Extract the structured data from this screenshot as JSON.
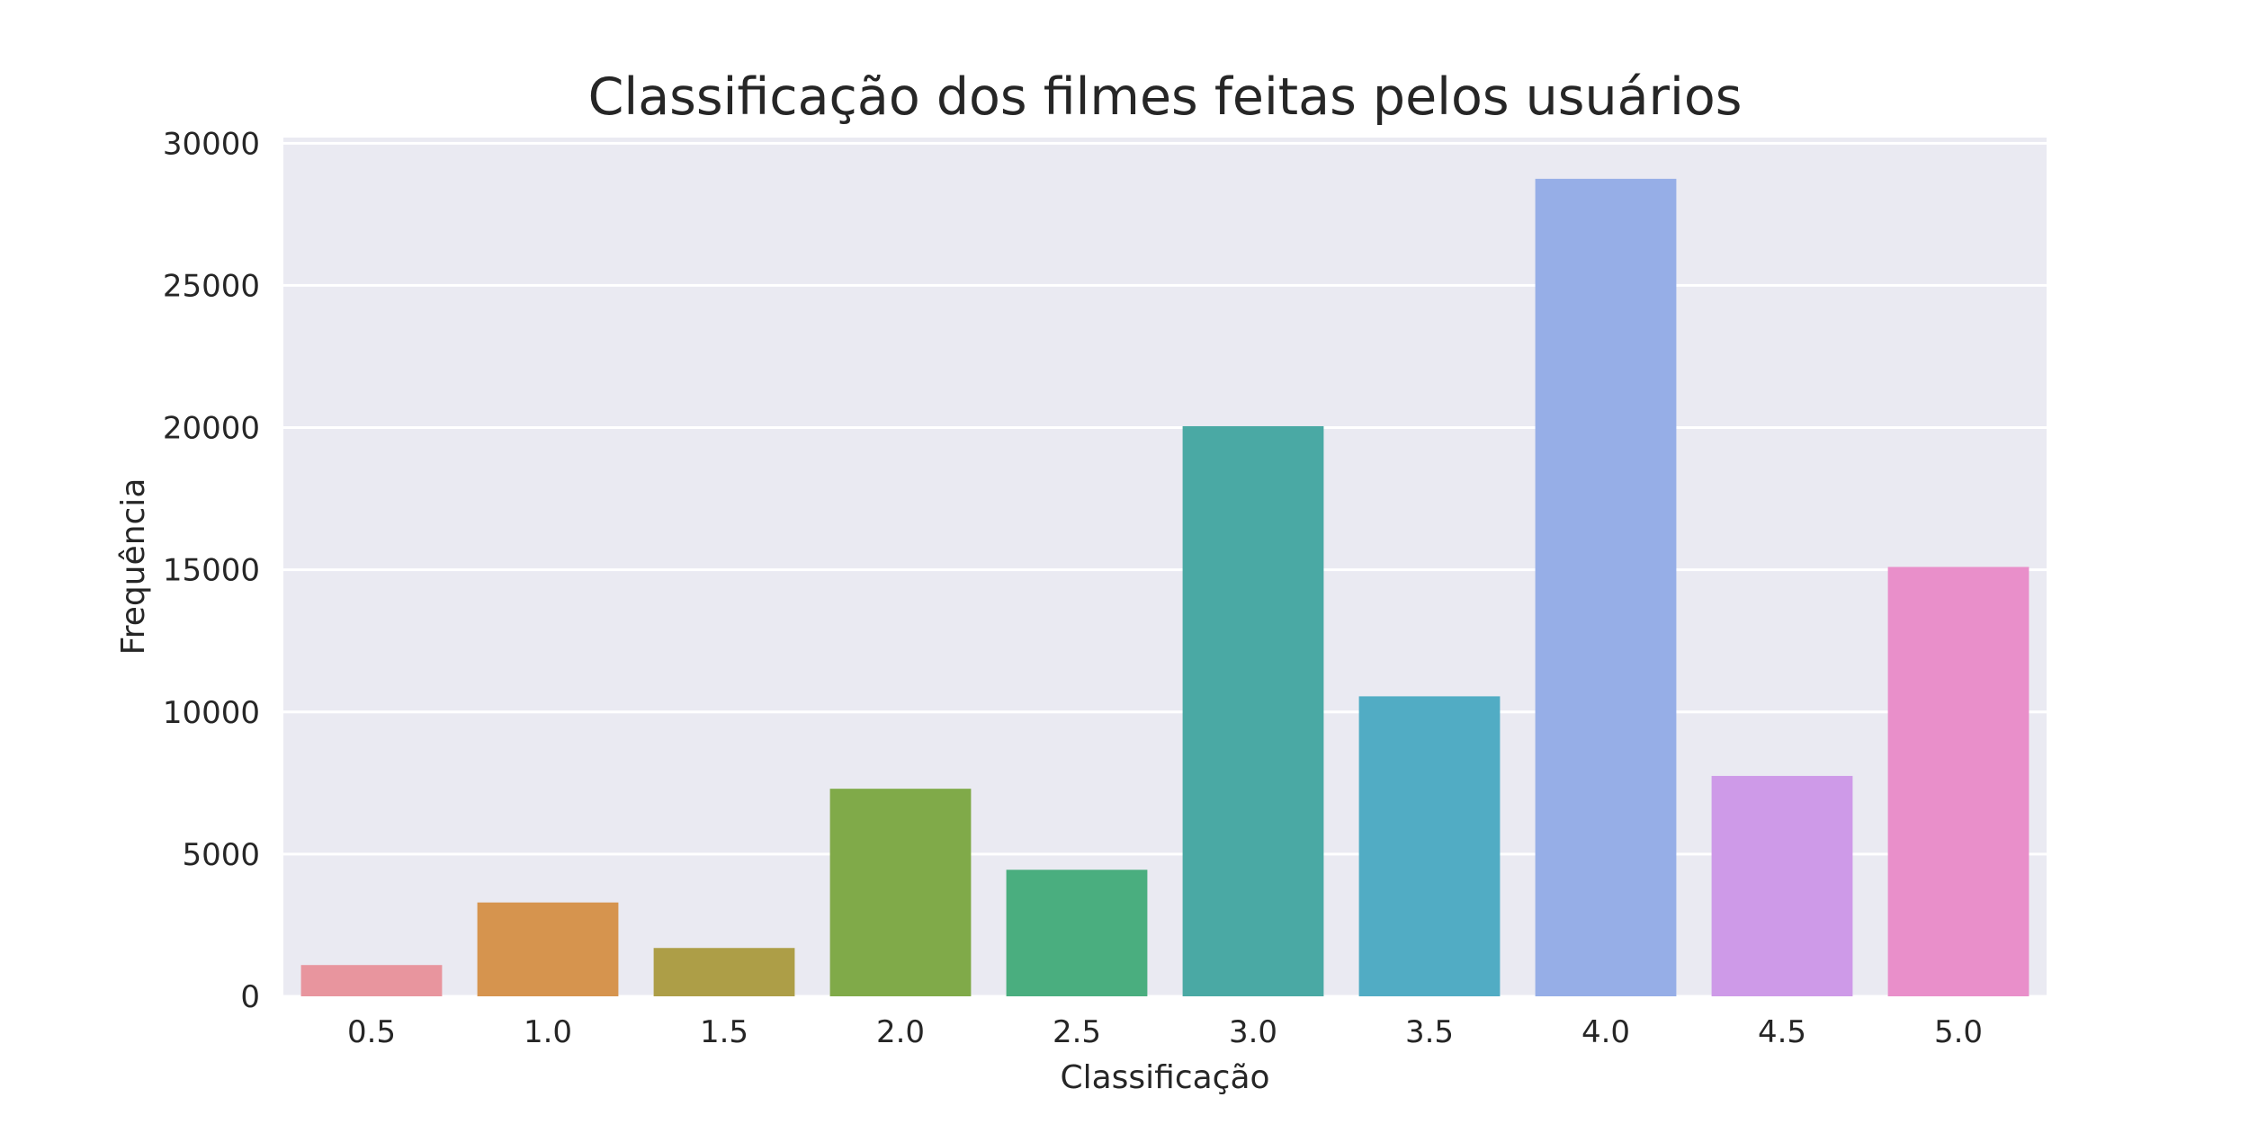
{
  "chart_data": {
    "type": "bar",
    "title": "Classificação dos filmes feitas pelos usuários",
    "xlabel": "Classificação",
    "ylabel": "Frequência",
    "categories": [
      "0.5",
      "1.0",
      "1.5",
      "2.0",
      "2.5",
      "3.0",
      "3.5",
      "4.0",
      "4.5",
      "5.0"
    ],
    "values": [
      1100,
      3300,
      1700,
      7300,
      4450,
      20050,
      10550,
      28750,
      7750,
      15100
    ],
    "colors": [
      "#e8959e",
      "#d6944e",
      "#ad9e47",
      "#80aa49",
      "#4aae7f",
      "#4aa9a4",
      "#51acc4",
      "#96aee7",
      "#ce9ae8",
      "#e98fca"
    ],
    "yticks": [
      0,
      5000,
      10000,
      15000,
      20000,
      25000,
      30000
    ],
    "ylim": [
      0,
      30200
    ],
    "grid": true,
    "background": "#eaeaf2",
    "gridColor": "#ffffff"
  }
}
